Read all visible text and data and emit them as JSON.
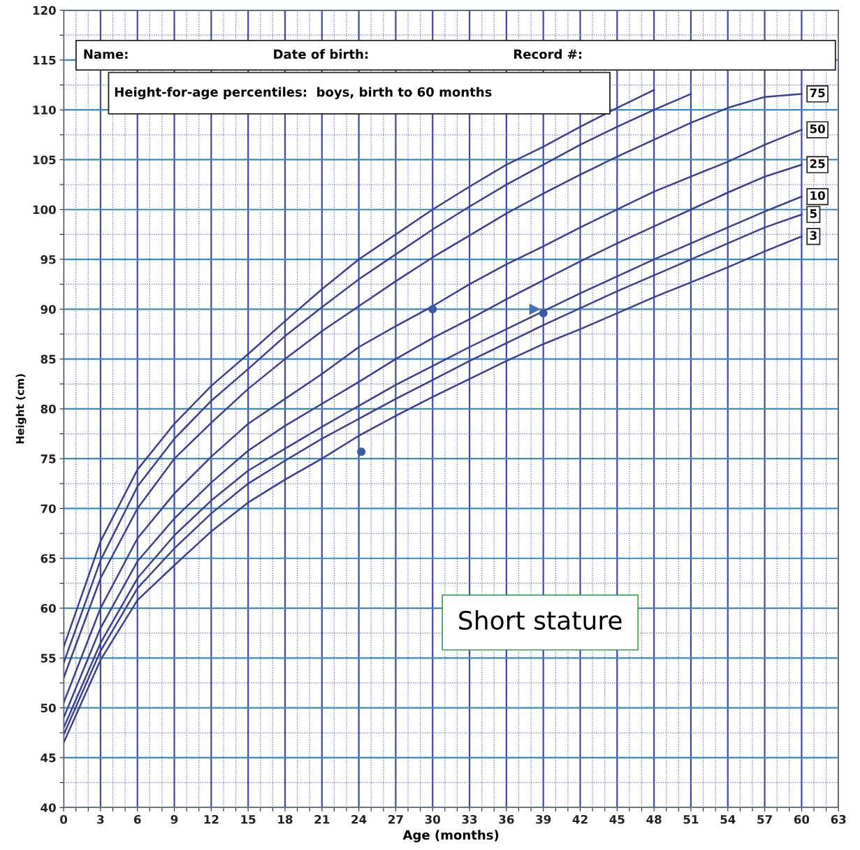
{
  "chart_data": {
    "type": "line",
    "title": "Height-for-age percentiles:  boys, birth to 60 months",
    "xlabel": "Age (months)",
    "ylabel": "Height (cm)",
    "annotations": [
      "Name:",
      "Date of birth:",
      "Record #:",
      "Short stature"
    ],
    "x": [
      0,
      3,
      6,
      9,
      12,
      15,
      18,
      21,
      24,
      27,
      30,
      33,
      36,
      39,
      42,
      45,
      48,
      51,
      54,
      57,
      60
    ],
    "series": [
      {
        "color": "#3b3f9c",
        "values": [
          56.1,
          66.7,
          73.9,
          78.5,
          82.3,
          85.5,
          88.8,
          92,
          95,
          97.5,
          100,
          102.3,
          104.5,
          106.3,
          108.3,
          110.2,
          112,
          null,
          null,
          null,
          null
        ]
      },
      {
        "color": "#3b3f9c",
        "values": [
          54.5,
          64.8,
          72.2,
          77,
          80.8,
          84,
          87.3,
          90.2,
          93,
          95.5,
          98,
          100.3,
          102.5,
          104.5,
          106.5,
          108.3,
          110,
          111.6,
          null,
          null,
          null
        ]
      },
      {
        "name": "75",
        "color": "#3b3f9c",
        "values": [
          53,
          63,
          70,
          75,
          78.6,
          82,
          85,
          87.8,
          90.3,
          92.8,
          95.2,
          97.4,
          99.6,
          101.6,
          103.5,
          105.3,
          107,
          108.7,
          110.2,
          111.3,
          111.6
        ]
      },
      {
        "name": "50",
        "color": "#3b3f9c",
        "values": [
          50.5,
          60,
          67,
          71.5,
          75.2,
          78.5,
          81,
          83.5,
          86.2,
          88.3,
          90.3,
          92.5,
          94.5,
          96.3,
          98.2,
          100,
          101.8,
          103.3,
          104.8,
          106.5,
          108
        ]
      },
      {
        "name": "25",
        "color": "#3b3f9c",
        "values": [
          49,
          58,
          64.7,
          69,
          72.6,
          75.8,
          78.3,
          80.5,
          82.7,
          85,
          87.1,
          89,
          91,
          92.9,
          94.8,
          96.6,
          98.3,
          100,
          101.7,
          103.3,
          104.5
        ]
      },
      {
        "name": "10",
        "color": "#3b3f9c",
        "values": [
          48,
          56.5,
          63,
          67.3,
          70.8,
          73.8,
          76,
          78.2,
          80.3,
          82.4,
          84.3,
          86.2,
          88,
          89.8,
          91.6,
          93.3,
          95,
          96.6,
          98.2,
          99.8,
          101.3
        ]
      },
      {
        "name": "5",
        "color": "#3b3f9c",
        "values": [
          47.3,
          55.7,
          62,
          66,
          69.5,
          72.5,
          74.8,
          77,
          79,
          81,
          82.9,
          84.8,
          86.6,
          88.4,
          90.1,
          91.8,
          93.4,
          95,
          96.6,
          98.2,
          99.5
        ]
      },
      {
        "name": "3",
        "color": "#3b3f9c",
        "values": [
          46.5,
          54.8,
          60.8,
          64.3,
          67.7,
          70.6,
          72.9,
          75,
          77.3,
          79.3,
          81.2,
          83,
          84.8,
          86.5,
          88,
          89.6,
          91.2,
          92.7,
          94.2,
          95.8,
          97.3
        ]
      },
      {
        "type": "scatter",
        "marker": "circle",
        "color": "#3a5ca8",
        "x": [
          30,
          39,
          24.2
        ],
        "values": [
          90,
          89.6,
          75.7
        ]
      }
    ],
    "xlim": [
      0,
      63
    ],
    "ylim": [
      40,
      120
    ],
    "xticks": [
      0,
      {
        "value": 1,
        "label": null
      },
      {
        "value": 2,
        "label": null
      },
      3,
      {
        "value": 4,
        "label": null
      },
      {
        "value": 5,
        "label": null
      },
      6,
      {
        "value": 7,
        "label": null
      },
      {
        "value": 8,
        "label": null
      },
      9,
      {
        "value": 10,
        "label": null
      },
      {
        "value": 11,
        "label": null
      },
      12,
      {
        "value": 13,
        "label": null
      },
      {
        "value": 14,
        "label": null
      },
      15,
      {
        "value": 16,
        "label": null
      },
      {
        "value": 17,
        "label": null
      },
      18,
      {
        "value": 19,
        "label": null
      },
      {
        "value": 20,
        "label": null
      },
      21,
      {
        "value": 22,
        "label": null
      },
      {
        "value": 23,
        "label": null
      },
      24,
      {
        "value": 25,
        "label": null
      },
      {
        "value": 26,
        "label": null
      },
      27,
      {
        "value": 28,
        "label": null
      },
      {
        "value": 29,
        "label": null
      },
      30,
      {
        "value": 31,
        "label": null
      },
      {
        "value": 32,
        "label": null
      },
      33,
      {
        "value": 34,
        "label": null
      },
      {
        "value": 35,
        "label": null
      },
      36,
      {
        "value": 37,
        "label": null
      },
      {
        "value": 38,
        "label": null
      },
      39,
      {
        "value": 40,
        "label": null
      },
      {
        "value": 41,
        "label": null
      },
      42,
      {
        "value": 43,
        "label": null
      },
      {
        "value": 44,
        "label": null
      },
      45,
      {
        "value": 46,
        "label": null
      },
      {
        "value": 47,
        "label": null
      },
      48,
      {
        "value": 49,
        "label": null
      },
      {
        "value": 50,
        "label": null
      },
      51,
      {
        "value": 52,
        "label": null
      },
      {
        "value": 53,
        "label": null
      },
      54,
      {
        "value": 55,
        "label": null
      },
      {
        "value": 56,
        "label": null
      },
      57,
      {
        "value": 58,
        "label": null
      },
      {
        "value": 59,
        "label": null
      },
      60,
      {
        "value": 61,
        "label": null
      },
      {
        "value": 62,
        "label": null
      },
      63
    ],
    "yticks": [
      40,
      {
        "value": 42.5,
        "label": null
      },
      45,
      {
        "value": 47.5,
        "label": null
      },
      50,
      {
        "value": 52.5,
        "label": null
      },
      55,
      {
        "value": 57.5,
        "label": null
      },
      60,
      {
        "value": 62.5,
        "label": null
      },
      65,
      {
        "value": 67.5,
        "label": null
      },
      70,
      {
        "value": 72.5,
        "label": null
      },
      75,
      {
        "value": 77.5,
        "label": null
      },
      80,
      {
        "value": 82.5,
        "label": null
      },
      85,
      {
        "value": 87.5,
        "label": null
      },
      90,
      {
        "value": 92.5,
        "label": null
      },
      95,
      {
        "value": 97.5,
        "label": null
      },
      100,
      {
        "value": 102.5,
        "label": null
      },
      105,
      {
        "value": 107.5,
        "label": null
      },
      110,
      {
        "value": 112.5,
        "label": null
      },
      115,
      {
        "value": 117.5,
        "label": null
      },
      120
    ],
    "grid": true,
    "legend": false,
    "marker": "none",
    "line_style": "solid"
  }
}
